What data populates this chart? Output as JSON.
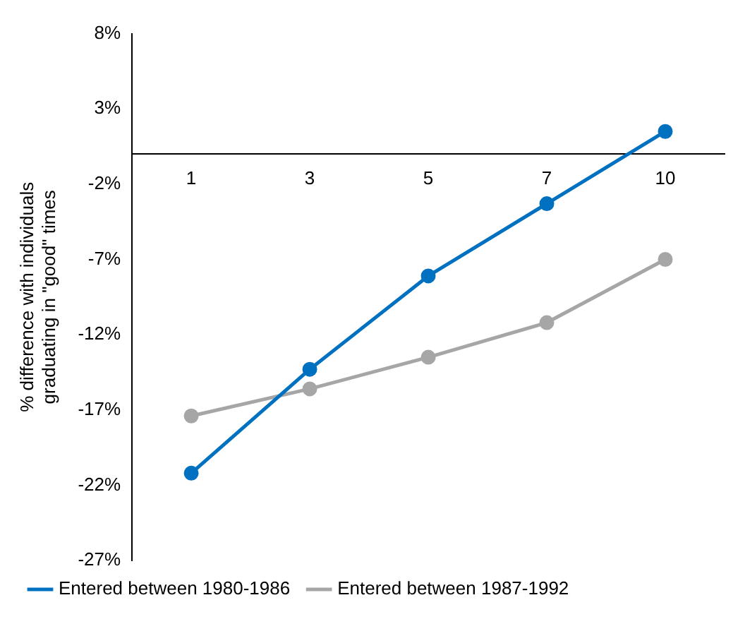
{
  "chart_data": {
    "type": "line",
    "ylabel": "% difference with individuals graduating in \"good\" times",
    "categories": [
      "1",
      "3",
      "5",
      "7",
      "10"
    ],
    "series": [
      {
        "name": "Entered between 1980-1986",
        "color": "#0070c0",
        "values": [
          -21.2,
          -14.3,
          -8.1,
          -3.3,
          1.5
        ]
      },
      {
        "name": "Entered between 1987-1992",
        "color": "#a6a6a6",
        "values": [
          -17.4,
          -15.6,
          -13.5,
          -11.2,
          -7.0
        ]
      }
    ],
    "ylim": [
      -27,
      8
    ],
    "yticks": [
      {
        "value": 8,
        "label": "8%"
      },
      {
        "value": 3,
        "label": "3%"
      },
      {
        "value": -2,
        "label": "-2%"
      },
      {
        "value": -7,
        "label": "-7%"
      },
      {
        "value": -12,
        "label": "-12%"
      },
      {
        "value": -17,
        "label": "-17%"
      },
      {
        "value": -22,
        "label": "-22%"
      },
      {
        "value": -27,
        "label": "-27%"
      }
    ],
    "grid": false,
    "legend": "bottom",
    "marker": "circle",
    "line_style": "solid"
  }
}
